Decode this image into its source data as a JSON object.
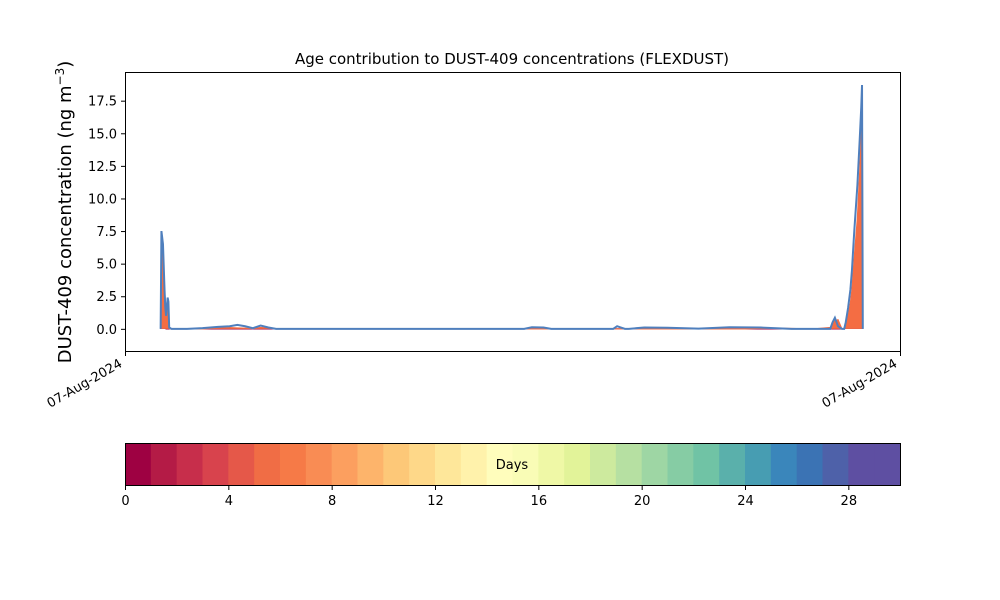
{
  "chart_data": [
    {
      "type": "area",
      "title": "Age contribution to DUST-409 concentrations (FLEXDUST)",
      "ylabel": "DUST-409 concentration (ng m⁻³)",
      "ylabel_main": "DUST-409 concentration (ng m",
      "ylabel_sup": "−3",
      "ylabel_close": ")",
      "xlabel": "",
      "x_tick_labels": [
        "07-Aug-2024",
        "07-Aug-2024"
      ],
      "xlim": [
        0,
        100
      ],
      "ylim": [
        -1.7,
        19.7
      ],
      "yticks": [
        0.0,
        2.5,
        5.0,
        7.5,
        10.0,
        12.5,
        15.0,
        17.5
      ],
      "ytick_labels": [
        "0.0",
        "2.5",
        "5.0",
        "7.5",
        "10.0",
        "12.5",
        "15.0",
        "17.5"
      ],
      "grid": false,
      "series": [
        {
          "color": "#9e0142",
          "x": [
            4.6,
            4.7,
            4.9,
            5.1,
            5.2,
            5.3,
            92.8,
            93.0,
            93.3,
            93.6,
            93.8,
            94.1,
            94.5,
            94.8,
            95.0,
            95.1,
            95.2
          ],
          "y": [
            0.0,
            5.8,
            6.2,
            2.5,
            1.0,
            0.0,
            0.0,
            0.2,
            0.8,
            1.8,
            2.6,
            4.5,
            7.5,
            11.0,
            14.0,
            16.0,
            0.0
          ]
        },
        {
          "color": "#f46d43",
          "x": [
            4.6,
            4.7,
            4.9,
            5.1,
            5.3,
            5.5,
            5.6,
            5.7,
            5.8,
            10,
            12,
            13.5,
            14.5,
            15.5,
            16.5,
            17.5,
            18.5,
            19.5,
            20.5,
            80,
            82,
            84,
            86,
            88,
            89,
            91,
            91.5,
            92,
            92.5,
            92.8,
            93.0,
            93.3,
            93.6,
            93.8,
            94.1,
            94.5,
            94.8,
            95.0,
            95.1,
            95.2
          ],
          "y": [
            0.0,
            6.6,
            6.4,
            3.0,
            1.4,
            2.0,
            1.6,
            0.1,
            0.0,
            0.0,
            0.06,
            0.09,
            0.07,
            0.05,
            0.02,
            0.1,
            0.06,
            0.0,
            0.0,
            0.0,
            0.04,
            0.05,
            0.03,
            0.0,
            0.0,
            0.1,
            0.6,
            0.7,
            0.0,
            0.0,
            0.3,
            1.0,
            2.0,
            3.0,
            5.5,
            8.5,
            12.0,
            15.0,
            16.0,
            0.0
          ]
        },
        {
          "color": "#4f7fbd",
          "x": [
            4.6,
            4.7,
            4.9,
            5.1,
            5.2,
            5.3,
            5.5,
            5.6,
            5.7,
            6,
            8,
            10,
            12,
            13.5,
            14.5,
            15.5,
            16.5,
            17.5,
            18.5,
            19.5,
            20.5,
            22,
            40,
            51.5,
            52.5,
            54,
            55,
            63,
            63.5,
            64,
            64.5,
            65,
            67,
            70,
            74,
            78,
            82,
            86,
            90,
            91,
            91.3,
            91.6,
            92,
            92.5,
            92.8,
            93.0,
            93.3,
            93.6,
            93.8,
            94.1,
            94.5,
            94.8,
            95.0,
            95.1,
            95.2
          ],
          "y": [
            0.0,
            7.5,
            6.5,
            3.0,
            1.6,
            1.0,
            2.4,
            2.1,
            0.1,
            0.0,
            0.0,
            0.05,
            0.15,
            0.2,
            0.3,
            0.2,
            0.05,
            0.25,
            0.1,
            0.0,
            0.0,
            0.0,
            0.0,
            0.0,
            0.12,
            0.1,
            0.0,
            0.0,
            0.2,
            0.1,
            0.0,
            0.0,
            0.1,
            0.08,
            0.02,
            0.12,
            0.1,
            0.0,
            0.0,
            0.0,
            0.5,
            0.85,
            0.2,
            0.0,
            0.0,
            0.5,
            1.6,
            3.0,
            4.5,
            7.5,
            11.0,
            14.5,
            17.0,
            18.7,
            0.0
          ]
        }
      ]
    },
    {
      "type": "heatmap",
      "role": "colorbar",
      "label": "Days",
      "range": [
        0,
        30
      ],
      "ticks": [
        0,
        4,
        8,
        12,
        16,
        20,
        24,
        28
      ],
      "tick_labels": [
        "0",
        "4",
        "8",
        "12",
        "16",
        "20",
        "24",
        "28"
      ],
      "colors": [
        "#9e0142",
        "#b41b46",
        "#c72e4b",
        "#d8434d",
        "#e55849",
        "#f06d45",
        "#f67a47",
        "#f98c54",
        "#fc9f5f",
        "#fdb46b",
        "#fdc878",
        "#fed889",
        "#fee79a",
        "#fff2ab",
        "#fffdbc",
        "#f9fcb6",
        "#eff8a6",
        "#e2f399",
        "#cdea9e",
        "#b6e0a2",
        "#9ed6a4",
        "#86cca4",
        "#70c3a5",
        "#5ab0ab",
        "#479db2",
        "#3a86bb",
        "#3b73b4",
        "#4e61a9",
        "#5e4fa2",
        "#5e4fa2"
      ]
    }
  ]
}
